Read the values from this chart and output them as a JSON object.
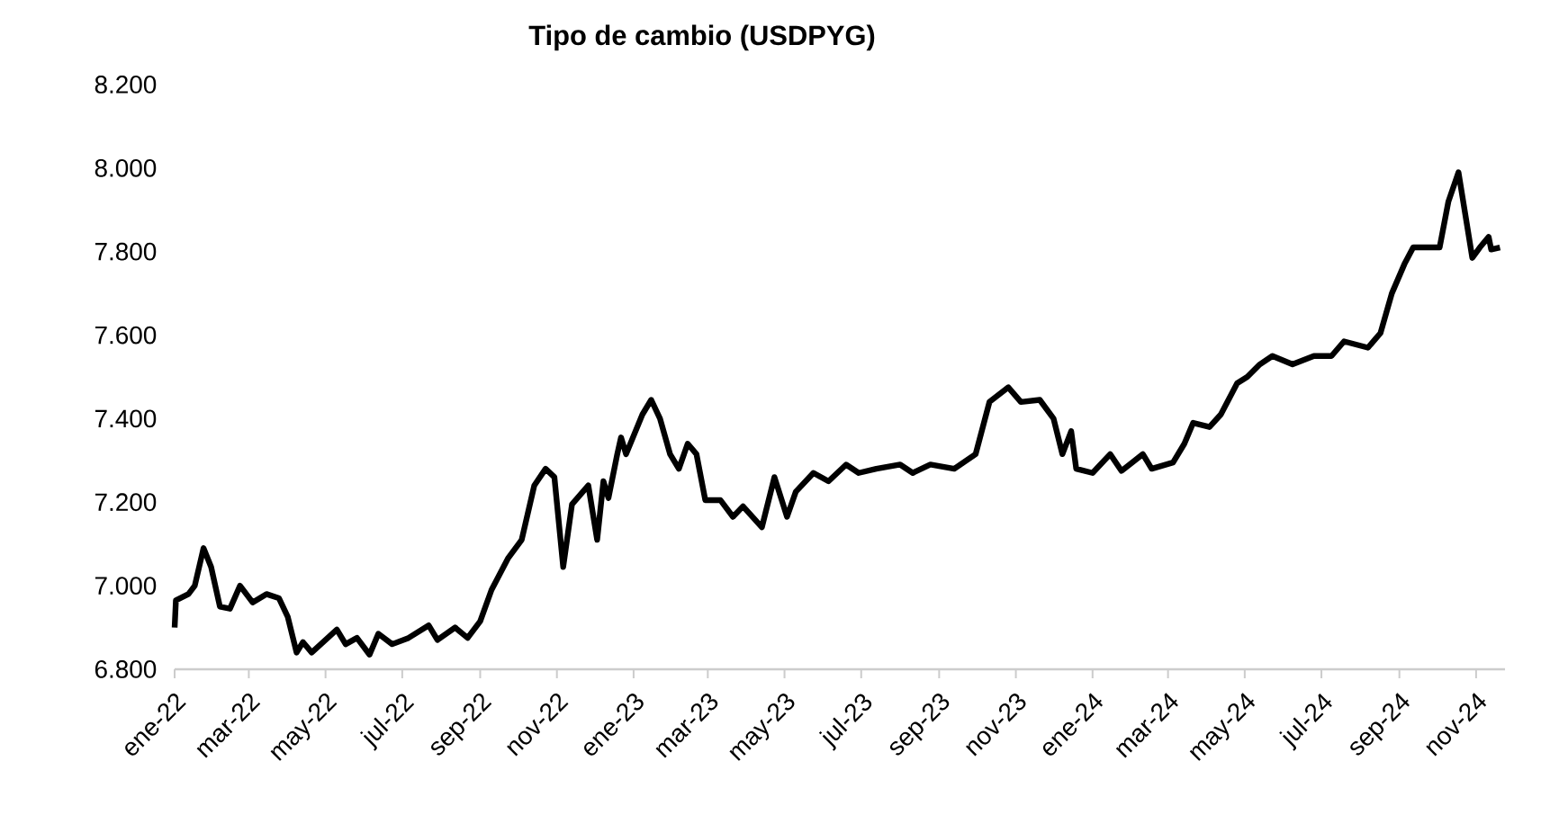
{
  "chart_data": {
    "type": "line",
    "title": "Tipo de cambio (USDPYG)",
    "color": "#000000",
    "xlim": [
      "2022-01-01",
      "2024-11-24"
    ],
    "ylim": [
      6800,
      8200
    ],
    "yticks": [
      {
        "value": 6800,
        "label": "6.800"
      },
      {
        "value": 7000,
        "label": "7.000"
      },
      {
        "value": 7200,
        "label": "7.200"
      },
      {
        "value": 7400,
        "label": "7.400"
      },
      {
        "value": 7600,
        "label": "7.600"
      },
      {
        "value": 7800,
        "label": "7.800"
      },
      {
        "value": 8000,
        "label": "8.000"
      },
      {
        "value": 8200,
        "label": "8.200"
      }
    ],
    "xticks": [
      {
        "value": "2022-01-01",
        "label": "ene-22"
      },
      {
        "value": "2022-03-01",
        "label": "mar-22"
      },
      {
        "value": "2022-05-01",
        "label": "may-22"
      },
      {
        "value": "2022-07-01",
        "label": "jul-22"
      },
      {
        "value": "2022-09-01",
        "label": "sep-22"
      },
      {
        "value": "2022-11-01",
        "label": "nov-22"
      },
      {
        "value": "2023-01-01",
        "label": "ene-23"
      },
      {
        "value": "2023-03-01",
        "label": "mar-23"
      },
      {
        "value": "2023-05-01",
        "label": "may-23"
      },
      {
        "value": "2023-07-01",
        "label": "jul-23"
      },
      {
        "value": "2023-09-01",
        "label": "sep-23"
      },
      {
        "value": "2023-11-01",
        "label": "nov-23"
      },
      {
        "value": "2024-01-01",
        "label": "ene-24"
      },
      {
        "value": "2024-03-01",
        "label": "mar-24"
      },
      {
        "value": "2024-05-01",
        "label": "may-24"
      },
      {
        "value": "2024-07-01",
        "label": "jul-24"
      },
      {
        "value": "2024-09-01",
        "label": "sep-24"
      },
      {
        "value": "2024-11-01",
        "label": "nov-24"
      }
    ],
    "x": [
      "2022-01-01",
      "2022-01-02",
      "2022-01-12",
      "2022-01-17",
      "2022-01-24",
      "2022-01-30",
      "2022-02-06",
      "2022-02-14",
      "2022-02-22",
      "2022-03-04",
      "2022-03-15",
      "2022-03-25",
      "2022-04-01",
      "2022-04-08",
      "2022-04-13",
      "2022-04-20",
      "2022-05-10",
      "2022-05-17",
      "2022-05-26",
      "2022-06-05",
      "2022-06-12",
      "2022-06-23",
      "2022-07-06",
      "2022-07-22",
      "2022-07-29",
      "2022-08-12",
      "2022-08-22",
      "2022-09-01",
      "2022-09-10",
      "2022-09-23",
      "2022-10-04",
      "2022-10-14",
      "2022-10-23",
      "2022-10-30",
      "2022-11-06",
      "2022-11-13",
      "2022-11-26",
      "2022-12-03",
      "2022-12-08",
      "2022-12-12",
      "2022-12-19",
      "2022-12-22",
      "2022-12-26",
      "2023-01-08",
      "2023-01-15",
      "2023-01-22",
      "2023-01-30",
      "2023-02-06",
      "2023-02-13",
      "2023-02-20",
      "2023-02-27",
      "2023-03-11",
      "2023-03-21",
      "2023-03-29",
      "2023-04-13",
      "2023-04-23",
      "2023-05-03",
      "2023-05-10",
      "2023-05-24",
      "2023-06-05",
      "2023-06-19",
      "2023-06-29",
      "2023-07-13",
      "2023-08-01",
      "2023-08-11",
      "2023-08-25",
      "2023-09-13",
      "2023-09-30",
      "2023-10-11",
      "2023-10-26",
      "2023-11-05",
      "2023-11-20",
      "2023-12-01",
      "2023-12-08",
      "2023-12-15",
      "2023-12-19",
      "2024-01-01",
      "2024-01-15",
      "2024-01-24",
      "2024-02-10",
      "2024-02-17",
      "2024-03-05",
      "2024-03-14",
      "2024-03-21",
      "2024-04-03",
      "2024-04-12",
      "2024-04-25",
      "2024-05-03",
      "2024-05-13",
      "2024-05-23",
      "2024-06-08",
      "2024-06-25",
      "2024-07-09",
      "2024-07-19",
      "2024-08-07",
      "2024-08-17",
      "2024-08-26",
      "2024-09-05",
      "2024-09-12",
      "2024-10-03",
      "2024-10-10",
      "2024-10-18",
      "2024-10-29",
      "2024-11-04",
      "2024-11-11",
      "2024-11-13",
      "2024-11-20"
    ],
    "values": [
      6900,
      6965,
      6980,
      7000,
      7090,
      7045,
      6950,
      6945,
      7000,
      6960,
      6980,
      6970,
      6925,
      6840,
      6865,
      6840,
      6895,
      6860,
      6875,
      6835,
      6885,
      6860,
      6875,
      6905,
      6870,
      6900,
      6875,
      6915,
      6990,
      7065,
      7110,
      7240,
      7280,
      7260,
      7045,
      7195,
      7240,
      7110,
      7250,
      7210,
      7315,
      7355,
      7315,
      7410,
      7445,
      7400,
      7315,
      7280,
      7340,
      7315,
      7205,
      7205,
      7165,
      7190,
      7140,
      7260,
      7165,
      7225,
      7270,
      7250,
      7290,
      7270,
      7280,
      7290,
      7270,
      7290,
      7280,
      7315,
      7440,
      7475,
      7440,
      7445,
      7400,
      7315,
      7370,
      7280,
      7270,
      7315,
      7275,
      7315,
      7280,
      7295,
      7340,
      7390,
      7380,
      7410,
      7485,
      7500,
      7530,
      7550,
      7530,
      7550,
      7550,
      7585,
      7570,
      7605,
      7700,
      7770,
      7810,
      7810,
      7920,
      7990,
      7785,
      7810,
      7835,
      7805,
      7810
    ]
  }
}
